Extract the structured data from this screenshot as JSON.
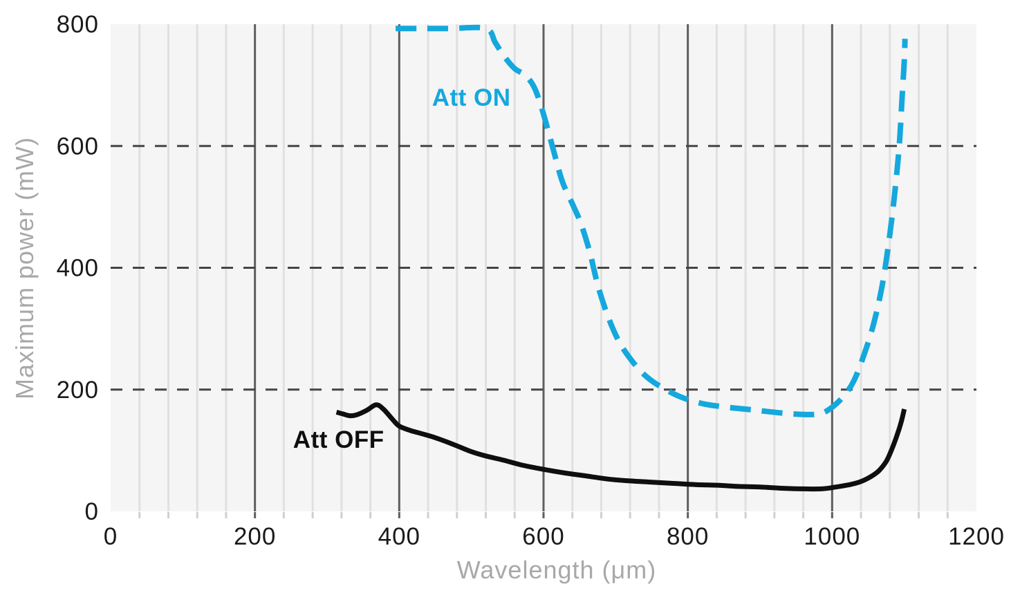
{
  "page": {
    "background": "#ffffff"
  },
  "chart_data": {
    "type": "line",
    "title": "",
    "xlabel": "Wavelength (μm)",
    "ylabel": "Maximum power (mW)",
    "xlim": [
      0,
      1200
    ],
    "ylim": [
      0,
      800
    ],
    "x_major_ticks": [
      0,
      200,
      400,
      600,
      800,
      1000,
      1200
    ],
    "x_minor_step": 40,
    "y_ticks": [
      0,
      200,
      400,
      600,
      800
    ],
    "grid": {
      "plot_bg": "#f5f5f5",
      "vertical_minor": true,
      "vertical_major": true,
      "horizontal_dashed_at": [
        200,
        400,
        600
      ],
      "minor_color": "#e0e0e0",
      "major_color": "#5e5e5e",
      "dashed_color": "#454545",
      "minor_tick_color": "#cfcfcf"
    },
    "legend_position": "inline-annotations",
    "text_colors": {
      "tick_label": "#1a1a1a",
      "axis_label": "#a8a8a8"
    },
    "series": [
      {
        "name": "Att ON",
        "color": "#14a8dd",
        "line_style": "dashed",
        "label_pos": [
          500,
          679
        ],
        "points": [
          [
            395,
            793
          ],
          [
            430,
            793
          ],
          [
            470,
            793
          ],
          [
            520,
            793
          ],
          [
            533,
            770
          ],
          [
            545,
            748
          ],
          [
            560,
            727
          ],
          [
            575,
            716
          ],
          [
            588,
            694
          ],
          [
            600,
            652
          ],
          [
            614,
            592
          ],
          [
            626,
            542
          ],
          [
            640,
            505
          ],
          [
            652,
            472
          ],
          [
            664,
            426
          ],
          [
            676,
            368
          ],
          [
            690,
            318
          ],
          [
            705,
            278
          ],
          [
            722,
            248
          ],
          [
            740,
            224
          ],
          [
            762,
            205
          ],
          [
            790,
            188
          ],
          [
            820,
            177
          ],
          [
            855,
            171
          ],
          [
            895,
            166
          ],
          [
            935,
            161
          ],
          [
            965,
            159
          ],
          [
            985,
            161
          ],
          [
            1000,
            171
          ],
          [
            1015,
            188
          ],
          [
            1030,
            214
          ],
          [
            1045,
            260
          ],
          [
            1058,
            310
          ],
          [
            1070,
            375
          ],
          [
            1080,
            455
          ],
          [
            1087,
            525
          ],
          [
            1093,
            600
          ],
          [
            1097,
            680
          ],
          [
            1100,
            740
          ],
          [
            1101,
            776
          ]
        ]
      },
      {
        "name": "Att OFF",
        "color": "#0f0f0f",
        "line_style": "solid",
        "label_pos": [
          316,
          117
        ],
        "points": [
          [
            313,
            163
          ],
          [
            322,
            160
          ],
          [
            332,
            157
          ],
          [
            342,
            159
          ],
          [
            355,
            166
          ],
          [
            368,
            175
          ],
          [
            378,
            168
          ],
          [
            390,
            152
          ],
          [
            400,
            140
          ],
          [
            415,
            133
          ],
          [
            430,
            128
          ],
          [
            450,
            121
          ],
          [
            475,
            110
          ],
          [
            500,
            98
          ],
          [
            520,
            91
          ],
          [
            545,
            84
          ],
          [
            570,
            76
          ],
          [
            600,
            69
          ],
          [
            630,
            63
          ],
          [
            660,
            58
          ],
          [
            690,
            53
          ],
          [
            720,
            50
          ],
          [
            750,
            48
          ],
          [
            780,
            46
          ],
          [
            810,
            44
          ],
          [
            840,
            43
          ],
          [
            870,
            41
          ],
          [
            900,
            40
          ],
          [
            930,
            38
          ],
          [
            960,
            37
          ],
          [
            985,
            37
          ],
          [
            1005,
            40
          ],
          [
            1025,
            44
          ],
          [
            1040,
            49
          ],
          [
            1055,
            58
          ],
          [
            1065,
            67
          ],
          [
            1075,
            82
          ],
          [
            1082,
            100
          ],
          [
            1090,
            125
          ],
          [
            1096,
            148
          ],
          [
            1100,
            168
          ]
        ]
      }
    ]
  }
}
